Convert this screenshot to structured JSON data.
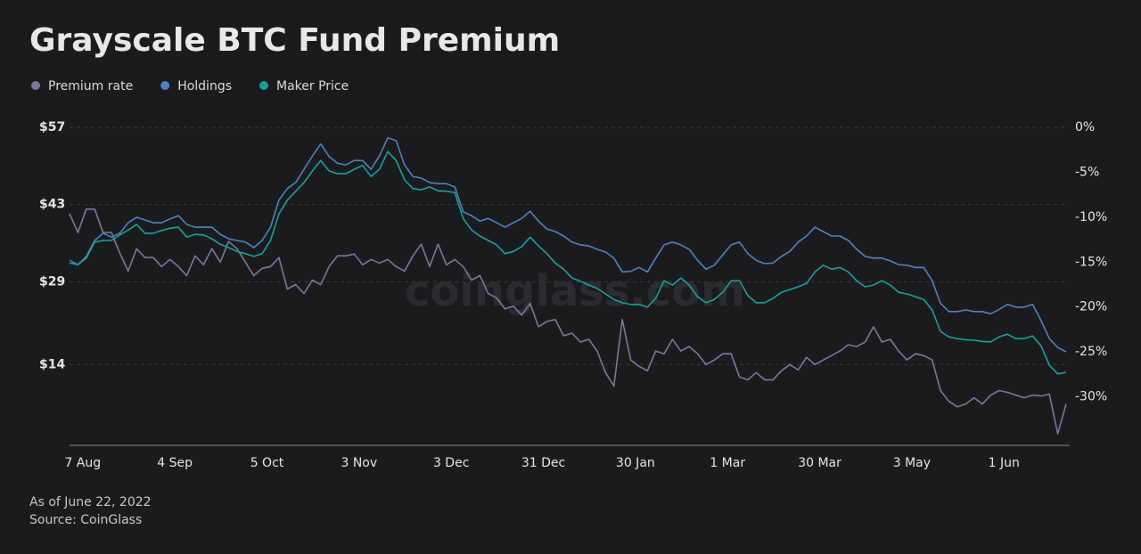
{
  "chart_data": {
    "type": "line",
    "title": "Grayscale BTC Fund Premium",
    "footnote": "As of June 22, 2022",
    "source": "Source: CoinGlass",
    "watermark": "coinglass.com",
    "categories": [
      null,
      null,
      "7 Aug",
      null,
      null,
      null,
      null,
      null,
      null,
      null,
      null,
      null,
      null,
      "4 Sep",
      null,
      null,
      null,
      null,
      null,
      null,
      null,
      null,
      null,
      null,
      "5 Oct",
      null,
      null,
      null,
      null,
      null,
      null,
      null,
      null,
      null,
      null,
      "3 Nov",
      null,
      null,
      null,
      null,
      null,
      null,
      null,
      null,
      null,
      null,
      "3 Dec",
      null,
      null,
      null,
      null,
      null,
      null,
      null,
      null,
      null,
      null,
      "31 Dec",
      null,
      null,
      null,
      null,
      null,
      null,
      null,
      null,
      null,
      null,
      "30 Jan",
      null,
      null,
      null,
      null,
      null,
      null,
      null,
      null,
      null,
      null,
      "1 Mar",
      null,
      null,
      null,
      null,
      null,
      null,
      null,
      null,
      null,
      null,
      "30 Mar",
      null,
      null,
      null,
      null,
      null,
      null,
      null,
      null,
      null,
      null,
      "3 May",
      null,
      null,
      null,
      null,
      null,
      null,
      null,
      null,
      null,
      null,
      "1 Jun",
      null,
      null,
      null,
      null,
      null,
      null,
      null
    ],
    "ylim": [
      0,
      57
    ],
    "yticks": [
      {
        "value": 14,
        "label": "$14"
      },
      {
        "value": 29,
        "label": "$29"
      },
      {
        "value": 43,
        "label": "$43"
      },
      {
        "value": 57,
        "label": "$57"
      }
    ],
    "y2lim": [
      -35,
      0
    ],
    "y2ticks": [
      {
        "value": -30,
        "label": "-30%"
      },
      {
        "value": -25,
        "label": "-25%"
      },
      {
        "value": -20,
        "label": "-20%"
      },
      {
        "value": -15,
        "label": "-15%"
      },
      {
        "value": -10,
        "label": "-10%"
      },
      {
        "value": -5,
        "label": "-5%"
      },
      {
        "value": 0,
        "label": "0%"
      }
    ],
    "grid": true,
    "series": [
      {
        "name": "Premium rate",
        "color": "#78789c",
        "axis": "y2",
        "values": [
          -9.6,
          -11.7,
          -9.1,
          -9.1,
          -11.7,
          -11.7,
          -14.0,
          -16.0,
          -13.5,
          -14.5,
          -14.5,
          -15.5,
          -14.7,
          -15.5,
          -16.5,
          -14.3,
          -15.3,
          -13.5,
          -15.0,
          -12.7,
          -13.5,
          -15.0,
          -16.5,
          -15.7,
          -15.5,
          -14.5,
          -18.0,
          -17.5,
          -18.5,
          -17.0,
          -17.5,
          -15.5,
          -14.3,
          -14.3,
          -14.1,
          -15.3,
          -14.7,
          -15.1,
          -14.7,
          -15.5,
          -16.0,
          -14.3,
          -13.0,
          -15.5,
          -13.0,
          -15.3,
          -14.7,
          -15.5,
          -17.0,
          -16.5,
          -18.5,
          -19.0,
          -20.2,
          -19.9,
          -20.9,
          -19.6,
          -22.2,
          -21.6,
          -21.4,
          -23.2,
          -22.9,
          -23.9,
          -23.6,
          -24.9,
          -27.3,
          -28.8,
          -21.4,
          -25.9,
          -26.6,
          -27.1,
          -24.9,
          -25.2,
          -23.6,
          -24.9,
          -24.4,
          -25.2,
          -26.4,
          -25.9,
          -25.2,
          -25.2,
          -27.8,
          -28.1,
          -27.3,
          -28.1,
          -28.1,
          -27.1,
          -26.4,
          -27.0,
          -25.6,
          -26.4,
          -25.9,
          -25.4,
          -24.9,
          -24.2,
          -24.4,
          -23.9,
          -22.2,
          -23.9,
          -23.6,
          -24.9,
          -25.9,
          -25.2,
          -25.4,
          -25.9,
          -29.3,
          -30.5,
          -31.1,
          -30.8,
          -30.1,
          -30.8,
          -29.8,
          -29.3,
          -29.5,
          -29.8,
          -30.1,
          -29.8,
          -29.9,
          -29.7,
          -34.1,
          -30.8
        ]
      },
      {
        "name": "Holdings",
        "color": "#4f82bd",
        "values": [
          32.9,
          32.1,
          33.6,
          36.5,
          37.8,
          37.1,
          37.8,
          39.7,
          40.7,
          40.2,
          39.7,
          39.7,
          40.4,
          41.0,
          39.4,
          38.9,
          38.9,
          38.9,
          37.6,
          36.8,
          36.5,
          36.2,
          35.2,
          36.5,
          38.9,
          43.8,
          45.9,
          47.0,
          49.4,
          51.8,
          54.0,
          51.7,
          50.5,
          50.2,
          51.0,
          51.0,
          49.4,
          51.8,
          55.1,
          54.6,
          50.2,
          48.1,
          47.8,
          47.0,
          46.8,
          46.8,
          46.2,
          41.7,
          41.0,
          40.0,
          40.5,
          39.7,
          38.9,
          39.7,
          40.5,
          41.8,
          40.0,
          38.6,
          38.1,
          37.3,
          36.2,
          35.7,
          35.5,
          34.9,
          34.4,
          33.3,
          30.8,
          30.9,
          31.6,
          30.8,
          33.3,
          35.7,
          36.2,
          35.7,
          34.9,
          32.9,
          31.3,
          32.0,
          33.9,
          35.7,
          36.2,
          34.1,
          32.9,
          32.3,
          32.4,
          33.6,
          34.5,
          36.2,
          37.3,
          38.9,
          38.1,
          37.3,
          37.3,
          36.5,
          34.9,
          33.6,
          33.3,
          33.3,
          32.8,
          32.1,
          32.0,
          31.6,
          31.6,
          29.2,
          25.1,
          23.6,
          23.6,
          23.9,
          23.6,
          23.6,
          23.2,
          24.0,
          24.9,
          24.4,
          24.4,
          24.9,
          22.0,
          18.7,
          17.1,
          16.3
        ]
      },
      {
        "name": "Maker Price",
        "color": "#16a19c",
        "values": [
          32.4,
          32.1,
          33.3,
          36.2,
          36.5,
          36.5,
          37.5,
          38.4,
          39.4,
          37.8,
          37.8,
          38.3,
          38.7,
          38.9,
          37.1,
          37.6,
          37.5,
          36.8,
          35.8,
          35.2,
          34.5,
          34.1,
          33.6,
          34.1,
          36.5,
          41.3,
          43.8,
          45.4,
          47.0,
          49.1,
          51.0,
          49.1,
          48.6,
          48.6,
          49.4,
          50.1,
          48.1,
          49.4,
          52.6,
          51.0,
          47.5,
          45.9,
          45.7,
          46.2,
          45.5,
          45.4,
          45.2,
          40.5,
          38.4,
          37.3,
          36.5,
          35.7,
          34.1,
          34.5,
          35.4,
          37.1,
          35.5,
          34.1,
          32.4,
          31.3,
          29.7,
          29.1,
          28.4,
          27.8,
          26.8,
          25.8,
          25.2,
          24.9,
          24.9,
          24.4,
          26.0,
          29.2,
          28.4,
          29.7,
          28.4,
          26.3,
          25.2,
          25.8,
          27.1,
          29.2,
          29.2,
          26.5,
          25.2,
          25.2,
          26.0,
          27.1,
          27.6,
          28.1,
          28.7,
          30.8,
          32.0,
          31.3,
          31.6,
          30.8,
          29.2,
          28.1,
          28.4,
          29.2,
          28.4,
          27.1,
          26.8,
          26.3,
          25.8,
          23.9,
          20.0,
          19.0,
          18.7,
          18.5,
          18.4,
          18.2,
          18.1,
          19.0,
          19.5,
          18.7,
          18.7,
          19.2,
          17.4,
          13.9,
          12.3,
          12.6
        ]
      }
    ]
  }
}
